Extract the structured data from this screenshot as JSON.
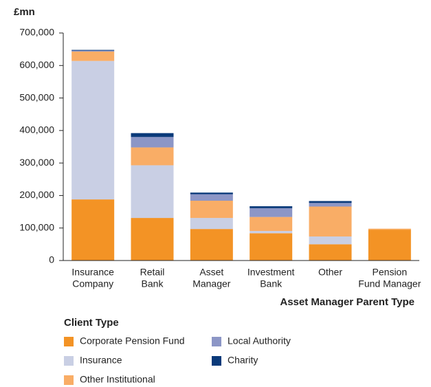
{
  "chart_data": {
    "type": "stacked_bar",
    "y_unit_label": "£mn",
    "x_axis_title": "Asset Manager Parent Type",
    "legend_title": "Client Type",
    "categories": [
      [
        "Insurance",
        "Company"
      ],
      [
        "Retail",
        "Bank"
      ],
      [
        "Asset",
        "Manager"
      ],
      [
        "Investment",
        "Bank"
      ],
      [
        "Other"
      ],
      [
        "Pension",
        "Fund Manager"
      ]
    ],
    "series": [
      {
        "name": "Corporate Pension Fund",
        "color": "#f39325",
        "values": [
          188000,
          131000,
          97000,
          84000,
          50000,
          95000
        ]
      },
      {
        "name": "Insurance",
        "color": "#c9cfe4",
        "values": [
          426000,
          162000,
          34000,
          7000,
          24000,
          0
        ]
      },
      {
        "name": "Other Institutional",
        "color": "#f9ad66",
        "values": [
          29000,
          55000,
          53000,
          43000,
          92000,
          3000
        ]
      },
      {
        "name": "Local Authority",
        "color": "#8c96c6",
        "values": [
          3000,
          32000,
          20000,
          27000,
          11000,
          0
        ]
      },
      {
        "name": "Charity",
        "color": "#0a3a7a",
        "values": [
          2000,
          12000,
          5000,
          6000,
          6000,
          0
        ]
      }
    ],
    "ylim": [
      0,
      700000
    ],
    "yticks": [
      0,
      {
        "value": 100000,
        "label": "100,000"
      },
      {
        "value": 200000,
        "label": "200,000"
      },
      {
        "value": 300000,
        "label": "300,000"
      },
      {
        "value": 400000,
        "label": "400,000"
      },
      {
        "value": 500000,
        "label": "500,000"
      },
      {
        "value": 600000,
        "label": "600,000"
      },
      {
        "value": 700000,
        "label": "700,000"
      }
    ]
  }
}
